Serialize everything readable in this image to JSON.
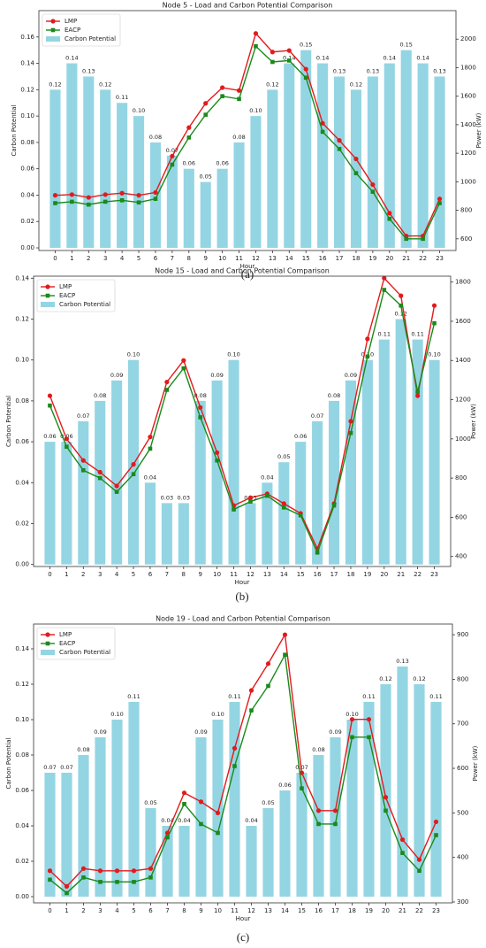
{
  "chart_data": [
    {
      "type": "combo",
      "title": "Node 5 - Load and Carbon Potential Comparison",
      "caption": "(a)",
      "x_label": "Hour",
      "y_label": "Carbon Potential",
      "y2_label": "Power (kW)",
      "legend": "upper left",
      "categories": [
        "0",
        "1",
        "2",
        "3",
        "4",
        "5",
        "6",
        "7",
        "8",
        "9",
        "10",
        "11",
        "12",
        "13",
        "14",
        "15",
        "16",
        "17",
        "18",
        "19",
        "20",
        "21",
        "22",
        "23"
      ],
      "ylim": [
        -0.002,
        0.18
      ],
      "yticks": [
        {
          "value": 0,
          "label": "0.00"
        },
        {
          "value": 0.02,
          "label": "0.02"
        },
        {
          "value": 0.04,
          "label": "0.04"
        },
        {
          "value": 0.06,
          "label": "0.06"
        },
        {
          "value": 0.08,
          "label": "0.08"
        },
        {
          "value": 0.1,
          "label": "0.10"
        },
        {
          "value": 0.12,
          "label": "0.12"
        },
        {
          "value": 0.14,
          "label": "0.14"
        },
        {
          "value": 0.16,
          "label": "0.16"
        }
      ],
      "y2lim": [
        518,
        2200
      ],
      "y2ticks": [
        600,
        800,
        1000,
        1200,
        1400,
        1600,
        1800,
        2000
      ],
      "series": [
        {
          "name": "LMP",
          "kind": "line",
          "marker": "circle",
          "axis": "y2",
          "color": "#e31a1c",
          "values": [
            905,
            910,
            890,
            910,
            920,
            905,
            925,
            1180,
            1380,
            1550,
            1660,
            1640,
            2040,
            1910,
            1920,
            1790,
            1410,
            1290,
            1160,
            980,
            780,
            620,
            620,
            880
          ]
        },
        {
          "name": "EACP",
          "kind": "line",
          "marker": "square",
          "axis": "y2",
          "color": "#1a8a1a",
          "values": [
            850,
            860,
            840,
            860,
            870,
            855,
            880,
            1120,
            1310,
            1470,
            1600,
            1580,
            1950,
            1840,
            1850,
            1730,
            1350,
            1230,
            1060,
            930,
            740,
            600,
            600,
            850
          ]
        },
        {
          "name": "Carbon Potential",
          "kind": "bar",
          "color": "#94d5e3",
          "values": [
            0.12,
            0.14,
            0.13,
            0.12,
            0.11,
            0.1,
            0.08,
            0.07,
            0.06,
            0.05,
            0.06,
            0.08,
            0.1,
            0.12,
            0.14,
            0.15,
            0.14,
            0.13,
            0.12,
            0.13,
            0.14,
            0.15,
            0.14,
            0.13
          ],
          "value_labels": [
            "0.12",
            "0.14",
            "0.13",
            "0.12",
            "0.11",
            "0.10",
            "0.08",
            "0.07",
            "0.06",
            "0.05",
            "0.06",
            "0.08",
            "0.10",
            "0.12",
            "0.14",
            "0.15",
            "0.14",
            "0.13",
            "0.12",
            "0.13",
            "0.14",
            "0.15",
            "0.14",
            "0.13"
          ]
        }
      ]
    },
    {
      "type": "combo",
      "title": "Node 15 - Load and Carbon Potential Comparison",
      "caption": "(b)",
      "x_label": "Hour",
      "y_label": "Carbon Potential",
      "y2_label": "Power (kW)",
      "legend": "upper left",
      "categories": [
        "0",
        "1",
        "2",
        "3",
        "4",
        "5",
        "6",
        "7",
        "8",
        "9",
        "10",
        "11",
        "12",
        "13",
        "14",
        "15",
        "16",
        "17",
        "18",
        "19",
        "20",
        "21",
        "22",
        "23"
      ],
      "ylim": [
        -0.001,
        0.141
      ],
      "yticks": [
        {
          "value": 0,
          "label": "0.00"
        },
        {
          "value": 0.02,
          "label": "0.02"
        },
        {
          "value": 0.04,
          "label": "0.04"
        },
        {
          "value": 0.06,
          "label": "0.06"
        },
        {
          "value": 0.08,
          "label": "0.08"
        },
        {
          "value": 0.1,
          "label": "0.10"
        },
        {
          "value": 0.12,
          "label": "0.12"
        },
        {
          "value": 0.14,
          "label": "0.14"
        }
      ],
      "y2lim": [
        349,
        1830
      ],
      "y2ticks": [
        400,
        600,
        800,
        1000,
        1200,
        1400,
        1600,
        1800
      ],
      "series": [
        {
          "name": "LMP",
          "kind": "line",
          "marker": "circle",
          "axis": "y2",
          "color": "#e31a1c",
          "values": [
            1220,
            1000,
            890,
            830,
            760,
            870,
            1010,
            1290,
            1400,
            1160,
            930,
            660,
            700,
            720,
            670,
            620,
            440,
            670,
            1090,
            1510,
            1820,
            1730,
            1220,
            1680
          ]
        },
        {
          "name": "EACP",
          "kind": "line",
          "marker": "square",
          "axis": "y2",
          "color": "#1a8a1a",
          "values": [
            1170,
            960,
            840,
            800,
            730,
            820,
            950,
            1250,
            1360,
            1110,
            890,
            640,
            680,
            710,
            650,
            610,
            420,
            660,
            1030,
            1420,
            1760,
            1680,
            1240,
            1590
          ]
        },
        {
          "name": "Carbon Potential",
          "kind": "bar",
          "color": "#94d5e3",
          "values": [
            0.06,
            0.06,
            0.07,
            0.08,
            0.09,
            0.1,
            0.04,
            0.03,
            0.03,
            0.08,
            0.09,
            0.1,
            0.03,
            0.04,
            0.05,
            0.06,
            0.07,
            0.08,
            0.09,
            0.1,
            0.11,
            0.12,
            0.11,
            0.1
          ],
          "value_labels": [
            "0.06",
            "0.06",
            "0.07",
            "0.08",
            "0.09",
            "0.10",
            "0.04",
            "0.03",
            "0.03",
            "0.08",
            "0.09",
            "0.10",
            "0.03",
            "0.04",
            "0.05",
            "0.06",
            "0.07",
            "0.08",
            "0.09",
            "0.10",
            "0.11",
            "0.12",
            "0.11",
            "0.10"
          ]
        }
      ]
    },
    {
      "type": "combo",
      "title": "Node 19 - Load and Carbon Potential Comparison",
      "caption": "(c)",
      "x_label": "Hour",
      "y_label": "Carbon Potential",
      "y2_label": "Power (kW)",
      "legend": "upper left",
      "categories": [
        "0",
        "1",
        "2",
        "3",
        "4",
        "5",
        "6",
        "7",
        "8",
        "9",
        "10",
        "11",
        "12",
        "13",
        "14",
        "15",
        "16",
        "17",
        "18",
        "19",
        "20",
        "21",
        "22",
        "23"
      ],
      "ylim": [
        -0.0035,
        0.154
      ],
      "yticks": [
        {
          "value": 0,
          "label": "0.00"
        },
        {
          "value": 0.02,
          "label": "0.02"
        },
        {
          "value": 0.04,
          "label": "0.04"
        },
        {
          "value": 0.06,
          "label": "0.06"
        },
        {
          "value": 0.08,
          "label": "0.08"
        },
        {
          "value": 0.1,
          "label": "0.10"
        },
        {
          "value": 0.12,
          "label": "0.12"
        },
        {
          "value": 0.14,
          "label": "0.14"
        }
      ],
      "y2lim": [
        298,
        924
      ],
      "y2ticks": [
        300,
        400,
        500,
        600,
        700,
        800,
        900
      ],
      "series": [
        {
          "name": "LMP",
          "kind": "line",
          "marker": "circle",
          "axis": "y2",
          "color": "#e31a1c",
          "values": [
            370,
            335,
            375,
            370,
            370,
            370,
            375,
            455,
            545,
            525,
            500,
            645,
            775,
            835,
            900,
            590,
            505,
            505,
            710,
            710,
            535,
            440,
            395,
            480
          ]
        },
        {
          "name": "EACP",
          "kind": "line",
          "marker": "square",
          "axis": "y2",
          "color": "#1a8a1a",
          "values": [
            350,
            320,
            355,
            345,
            345,
            345,
            355,
            445,
            520,
            475,
            455,
            605,
            730,
            785,
            855,
            555,
            475,
            475,
            670,
            670,
            505,
            410,
            370,
            450
          ]
        },
        {
          "name": "Carbon Potential",
          "kind": "bar",
          "color": "#94d5e3",
          "values": [
            0.07,
            0.07,
            0.08,
            0.09,
            0.1,
            0.11,
            0.05,
            0.04,
            0.04,
            0.09,
            0.1,
            0.11,
            0.04,
            0.05,
            0.06,
            0.07,
            0.08,
            0.09,
            0.1,
            0.11,
            0.12,
            0.13,
            0.12,
            0.11
          ],
          "value_labels": [
            "0.07",
            "0.07",
            "0.08",
            "0.09",
            "0.10",
            "0.11",
            "0.05",
            "0.04",
            "0.04",
            "0.09",
            "0.10",
            "0.11",
            "0.04",
            "0.05",
            "0.06",
            "0.07",
            "0.08",
            "0.09",
            "0.10",
            "0.11",
            "0.12",
            "0.13",
            "0.12",
            "0.11"
          ]
        }
      ]
    }
  ]
}
